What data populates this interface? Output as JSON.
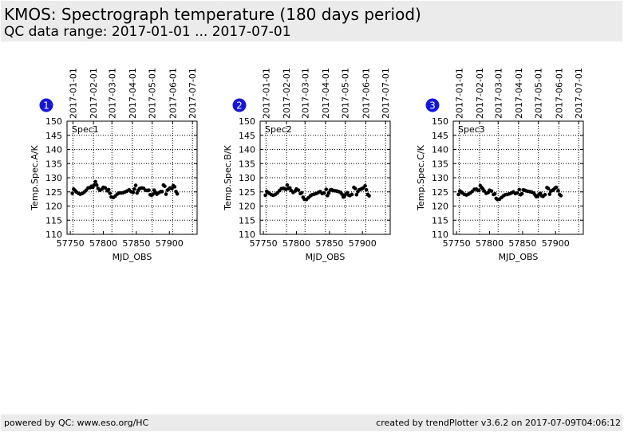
{
  "header": {
    "title": "KMOS: Spectrograph temperature (180 days period)",
    "subtitle": "QC data range: 2017-01-01 ... 2017-07-01"
  },
  "footer": {
    "left": "powered by QC: www.eso.org/HC",
    "right": "created by trendPlotter v3.6.2 on 2017-07-09T04:06:12"
  },
  "colors": {
    "badge": "#1515e0",
    "marker": "#000000",
    "header_bg": "#ebebeb"
  },
  "chart_data": [
    {
      "type": "scatter",
      "badge": "1",
      "label": "Spec1",
      "xlabel": "MJD_OBS",
      "ylabel": "Temp.Spec.A/K",
      "xlim": [
        57745,
        57942
      ],
      "ylim": [
        110,
        150
      ],
      "xticks": [
        57750,
        57800,
        57850,
        57900
      ],
      "yticks": [
        110,
        115,
        120,
        125,
        130,
        135,
        140,
        145,
        150
      ],
      "top_ticks": [
        {
          "mjd": 57754,
          "label": "2017-01-01"
        },
        {
          "mjd": 57785,
          "label": "2017-02-01"
        },
        {
          "mjd": 57813,
          "label": "2017-03-01"
        },
        {
          "mjd": 57844,
          "label": "2017-04-01"
        },
        {
          "mjd": 57874,
          "label": "2017-05-01"
        },
        {
          "mjd": 57905,
          "label": "2017-06-01"
        },
        {
          "mjd": 57935,
          "label": "2017-07-01"
        }
      ],
      "grid": true,
      "points": [
        [
          57753,
          124.5
        ],
        [
          57755,
          126
        ],
        [
          57757,
          125.6
        ],
        [
          57759,
          125
        ],
        [
          57762,
          124.5
        ],
        [
          57765,
          124.2
        ],
        [
          57768,
          124.4
        ],
        [
          57771,
          124.9
        ],
        [
          57774,
          125.6
        ],
        [
          57777,
          126.4
        ],
        [
          57780,
          126.5
        ],
        [
          57782,
          127
        ],
        [
          57784,
          126.6
        ],
        [
          57786,
          127.4
        ],
        [
          57788,
          128.6
        ],
        [
          57790,
          127.4
        ],
        [
          57792,
          126.2
        ],
        [
          57795,
          125.6
        ],
        [
          57798,
          126
        ],
        [
          57800,
          126.6
        ],
        [
          57803,
          126.4
        ],
        [
          57806,
          125.4
        ],
        [
          57808,
          125.8
        ],
        [
          57810,
          124.5
        ],
        [
          57812,
          123.2
        ],
        [
          57815,
          123
        ],
        [
          57818,
          123.5
        ],
        [
          57821,
          124.2
        ],
        [
          57824,
          124.6
        ],
        [
          57827,
          124.6
        ],
        [
          57830,
          124.7
        ],
        [
          57833,
          125
        ],
        [
          57836,
          125.3
        ],
        [
          57839,
          125.7
        ],
        [
          57842,
          125.1
        ],
        [
          57845,
          124.8
        ],
        [
          57847,
          126
        ],
        [
          57849,
          127.3
        ],
        [
          57851,
          124.6
        ],
        [
          57853,
          125.6
        ],
        [
          57855,
          126.2
        ],
        [
          57858,
          126.4
        ],
        [
          57861,
          126.3
        ],
        [
          57864,
          125.6
        ],
        [
          57867,
          125.5
        ],
        [
          57869,
          125.6
        ],
        [
          57871,
          124
        ],
        [
          57873,
          123.8
        ],
        [
          57875,
          124.2
        ],
        [
          57877,
          125.6
        ],
        [
          57879,
          124.8
        ],
        [
          57881,
          124.2
        ],
        [
          57884,
          124.7
        ],
        [
          57887,
          125.1
        ],
        [
          57889,
          125.1
        ],
        [
          57891,
          127.4
        ],
        [
          57893,
          127
        ],
        [
          57895,
          124.2
        ],
        [
          57897,
          125.6
        ],
        [
          57899,
          125.9
        ],
        [
          57901,
          126.4
        ],
        [
          57904,
          126.2
        ],
        [
          57906,
          127.2
        ],
        [
          57908,
          126.8
        ],
        [
          57910,
          125.1
        ],
        [
          57912,
          124.3
        ]
      ]
    },
    {
      "type": "scatter",
      "badge": "2",
      "label": "Spec2",
      "xlabel": "MJD_OBS",
      "ylabel": "Temp.Spec.B/K",
      "xlim": [
        57745,
        57942
      ],
      "ylim": [
        110,
        150
      ],
      "xticks": [
        57750,
        57800,
        57850,
        57900
      ],
      "yticks": [
        110,
        115,
        120,
        125,
        130,
        135,
        140,
        145,
        150
      ],
      "top_ticks": [
        {
          "mjd": 57754,
          "label": "2017-01-01"
        },
        {
          "mjd": 57785,
          "label": "2017-02-01"
        },
        {
          "mjd": 57813,
          "label": "2017-03-01"
        },
        {
          "mjd": 57844,
          "label": "2017-04-01"
        },
        {
          "mjd": 57874,
          "label": "2017-05-01"
        },
        {
          "mjd": 57905,
          "label": "2017-06-01"
        },
        {
          "mjd": 57935,
          "label": "2017-07-01"
        }
      ],
      "grid": true,
      "points": [
        [
          57753,
          123.8
        ],
        [
          57755,
          125.2
        ],
        [
          57757,
          124.8
        ],
        [
          57759,
          124.5
        ],
        [
          57762,
          124
        ],
        [
          57765,
          123.8
        ],
        [
          57768,
          124.1
        ],
        [
          57771,
          124.6
        ],
        [
          57774,
          125.4
        ],
        [
          57777,
          126.1
        ],
        [
          57780,
          126.3
        ],
        [
          57782,
          126.1
        ],
        [
          57784,
          125.9
        ],
        [
          57786,
          127.4
        ],
        [
          57788,
          126.2
        ],
        [
          57790,
          126.4
        ],
        [
          57792,
          125.5
        ],
        [
          57795,
          124.8
        ],
        [
          57798,
          125.3
        ],
        [
          57800,
          126
        ],
        [
          57803,
          125.6
        ],
        [
          57806,
          124.4
        ],
        [
          57808,
          124.7
        ],
        [
          57810,
          123.1
        ],
        [
          57812,
          122.4
        ],
        [
          57815,
          122.3
        ],
        [
          57818,
          122.9
        ],
        [
          57821,
          123.6
        ],
        [
          57824,
          124
        ],
        [
          57827,
          124.2
        ],
        [
          57830,
          124.4
        ],
        [
          57833,
          124.8
        ],
        [
          57836,
          125.1
        ],
        [
          57839,
          124.4
        ],
        [
          57842,
          124.6
        ],
        [
          57845,
          125.9
        ],
        [
          57847,
          123.7
        ],
        [
          57849,
          124.6
        ],
        [
          57851,
          125.6
        ],
        [
          57853,
          125.8
        ],
        [
          57855,
          125.5
        ],
        [
          57858,
          125.4
        ],
        [
          57861,
          125.3
        ],
        [
          57864,
          125.1
        ],
        [
          57867,
          124.8
        ],
        [
          57869,
          124.2
        ],
        [
          57871,
          123.2
        ],
        [
          57873,
          123.6
        ],
        [
          57875,
          124.3
        ],
        [
          57877,
          124.7
        ],
        [
          57879,
          123.9
        ],
        [
          57881,
          123.7
        ],
        [
          57884,
          124.1
        ],
        [
          57887,
          126.6
        ],
        [
          57889,
          126.2
        ],
        [
          57891,
          124
        ],
        [
          57893,
          125.1
        ],
        [
          57895,
          125.7
        ],
        [
          57897,
          125.9
        ],
        [
          57899,
          126.1
        ],
        [
          57901,
          126.4
        ],
        [
          57904,
          127.1
        ],
        [
          57906,
          125.7
        ],
        [
          57908,
          124.1
        ],
        [
          57910,
          123.6
        ]
      ]
    },
    {
      "type": "scatter",
      "badge": "3",
      "label": "Spec3",
      "xlabel": "MJD_OBS",
      "ylabel": "Temp.Spec.C/K",
      "xlim": [
        57745,
        57942
      ],
      "ylim": [
        110,
        150
      ],
      "xticks": [
        57750,
        57800,
        57850,
        57900
      ],
      "yticks": [
        110,
        115,
        120,
        125,
        130,
        135,
        140,
        145,
        150
      ],
      "top_ticks": [
        {
          "mjd": 57754,
          "label": "2017-01-01"
        },
        {
          "mjd": 57785,
          "label": "2017-02-01"
        },
        {
          "mjd": 57813,
          "label": "2017-03-01"
        },
        {
          "mjd": 57844,
          "label": "2017-04-01"
        },
        {
          "mjd": 57874,
          "label": "2017-05-01"
        },
        {
          "mjd": 57905,
          "label": "2017-06-01"
        },
        {
          "mjd": 57935,
          "label": "2017-07-01"
        }
      ],
      "grid": true,
      "points": [
        [
          57753,
          124.1
        ],
        [
          57755,
          125.3
        ],
        [
          57757,
          125
        ],
        [
          57759,
          124.6
        ],
        [
          57762,
          124.1
        ],
        [
          57765,
          123.9
        ],
        [
          57768,
          124.2
        ],
        [
          57771,
          124.6
        ],
        [
          57774,
          125.2
        ],
        [
          57777,
          125.9
        ],
        [
          57780,
          126
        ],
        [
          57782,
          125.6
        ],
        [
          57784,
          125.5
        ],
        [
          57786,
          127.2
        ],
        [
          57788,
          126.6
        ],
        [
          57790,
          126
        ],
        [
          57792,
          125.3
        ],
        [
          57795,
          124.5
        ],
        [
          57798,
          124.8
        ],
        [
          57800,
          125.6
        ],
        [
          57803,
          125.3
        ],
        [
          57806,
          124.1
        ],
        [
          57808,
          124.3
        ],
        [
          57810,
          122.7
        ],
        [
          57812,
          122.3
        ],
        [
          57815,
          122.4
        ],
        [
          57818,
          123
        ],
        [
          57821,
          123.6
        ],
        [
          57824,
          124
        ],
        [
          57827,
          124.1
        ],
        [
          57830,
          124.3
        ],
        [
          57833,
          124.6
        ],
        [
          57836,
          125
        ],
        [
          57839,
          124.4
        ],
        [
          57842,
          124.6
        ],
        [
          57845,
          125.8
        ],
        [
          57847,
          124
        ],
        [
          57849,
          124.3
        ],
        [
          57851,
          125.7
        ],
        [
          57853,
          125.6
        ],
        [
          57855,
          125.4
        ],
        [
          57858,
          125.2
        ],
        [
          57861,
          125.1
        ],
        [
          57864,
          124.9
        ],
        [
          57867,
          124.6
        ],
        [
          57869,
          123.9
        ],
        [
          57871,
          123.3
        ],
        [
          57873,
          123.5
        ],
        [
          57875,
          124.2
        ],
        [
          57877,
          124.5
        ],
        [
          57879,
          123.6
        ],
        [
          57881,
          123.4
        ],
        [
          57884,
          124
        ],
        [
          57887,
          126.5
        ],
        [
          57889,
          126.2
        ],
        [
          57891,
          124.2
        ],
        [
          57893,
          125.3
        ],
        [
          57895,
          125.5
        ],
        [
          57897,
          125.8
        ],
        [
          57899,
          126.3
        ],
        [
          57901,
          126.6
        ],
        [
          57904,
          125.4
        ],
        [
          57906,
          124.1
        ],
        [
          57908,
          123.7
        ]
      ]
    }
  ]
}
